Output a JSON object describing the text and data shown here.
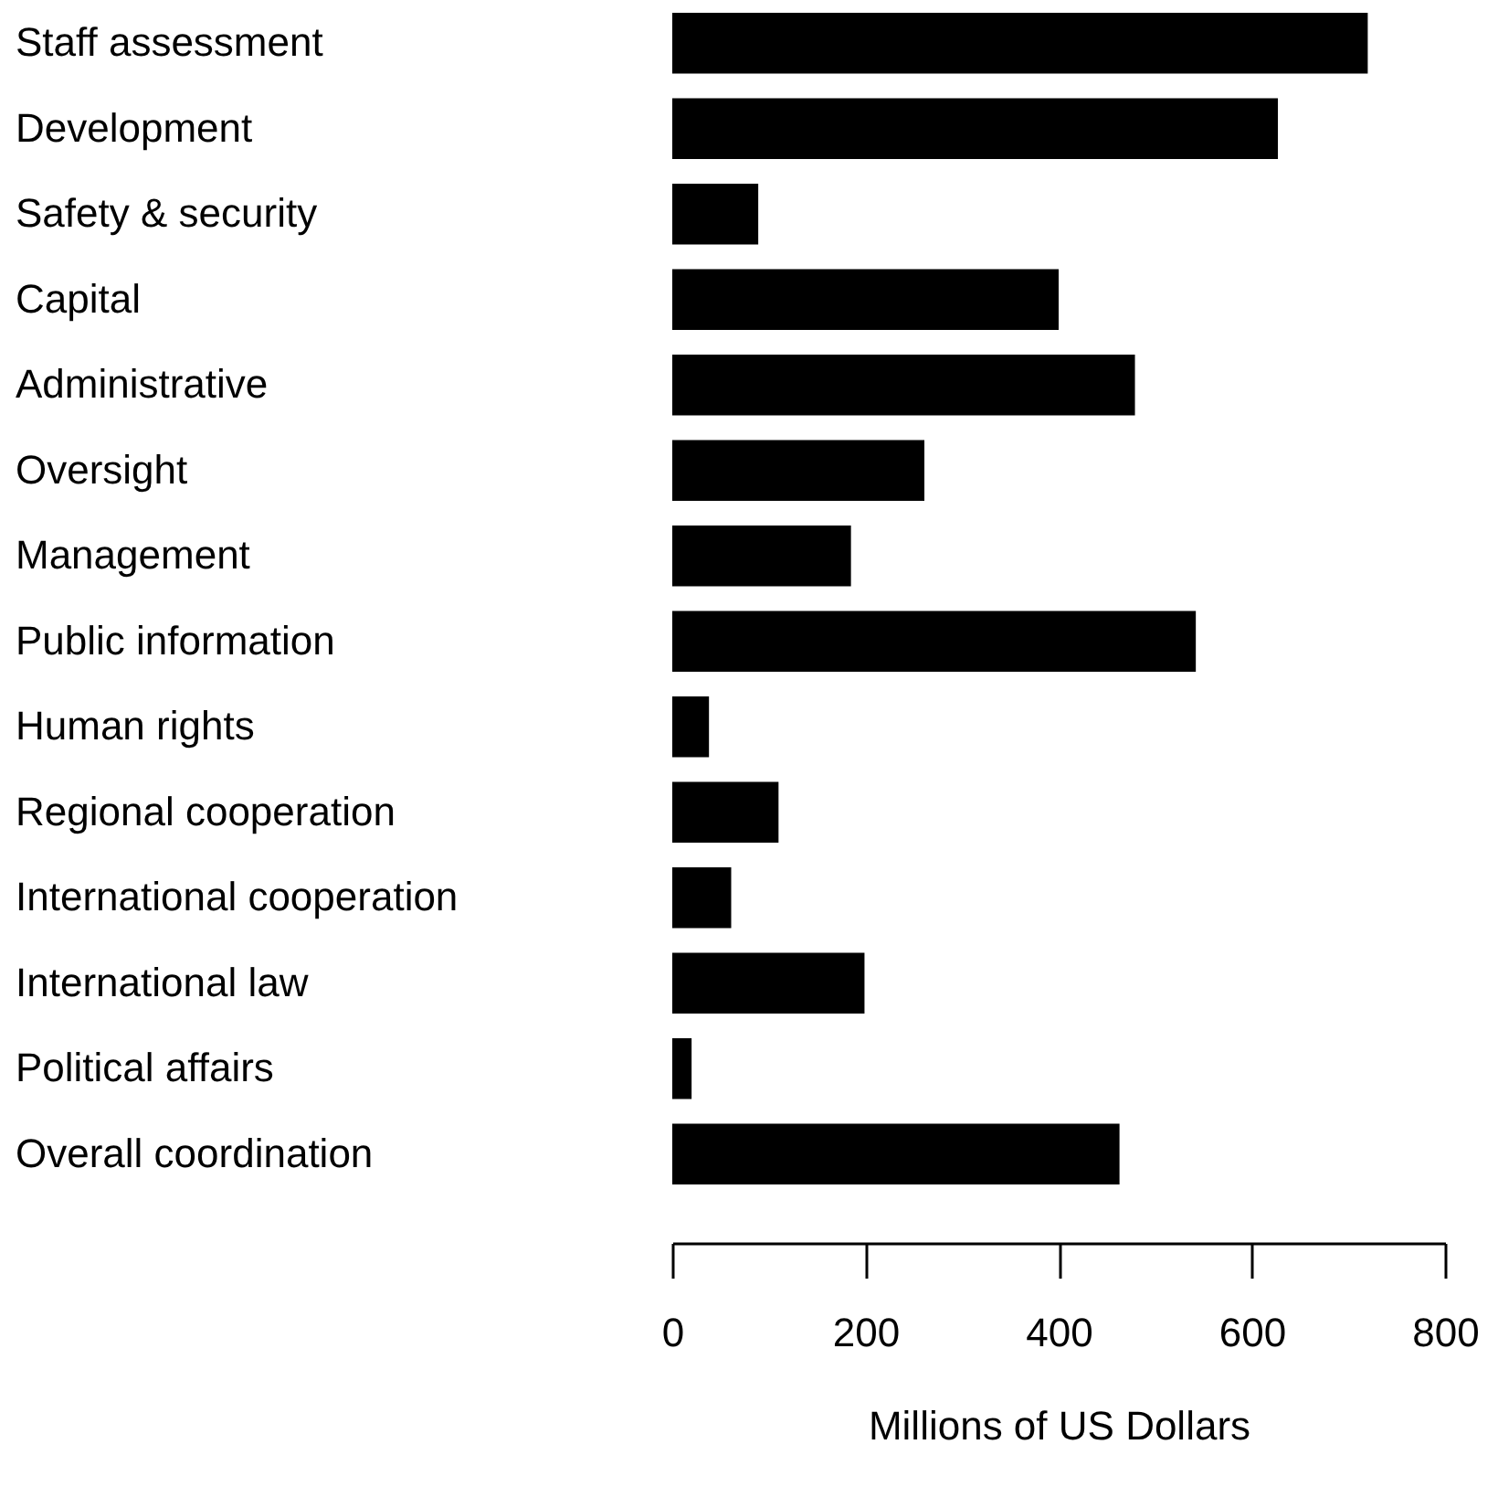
{
  "chart_data": {
    "type": "bar",
    "orientation": "horizontal",
    "xlabel": "Millions of US Dollars",
    "categories": [
      "Staff assessment",
      "Development",
      "Safety & security",
      "Capital",
      "Administrative",
      "Oversight",
      "Management",
      "Public information",
      "Human rights",
      "Regional cooperation",
      "International cooperation",
      "International law",
      "Political affairs",
      "Overall coordination"
    ],
    "values": [
      720,
      627,
      89,
      400,
      479,
      261,
      185,
      542,
      38,
      110,
      61,
      199,
      20,
      463
    ],
    "color": "#000000",
    "xlim": [
      0,
      800
    ],
    "xticks": [
      0,
      200,
      400,
      600,
      800
    ],
    "grid": false
  }
}
